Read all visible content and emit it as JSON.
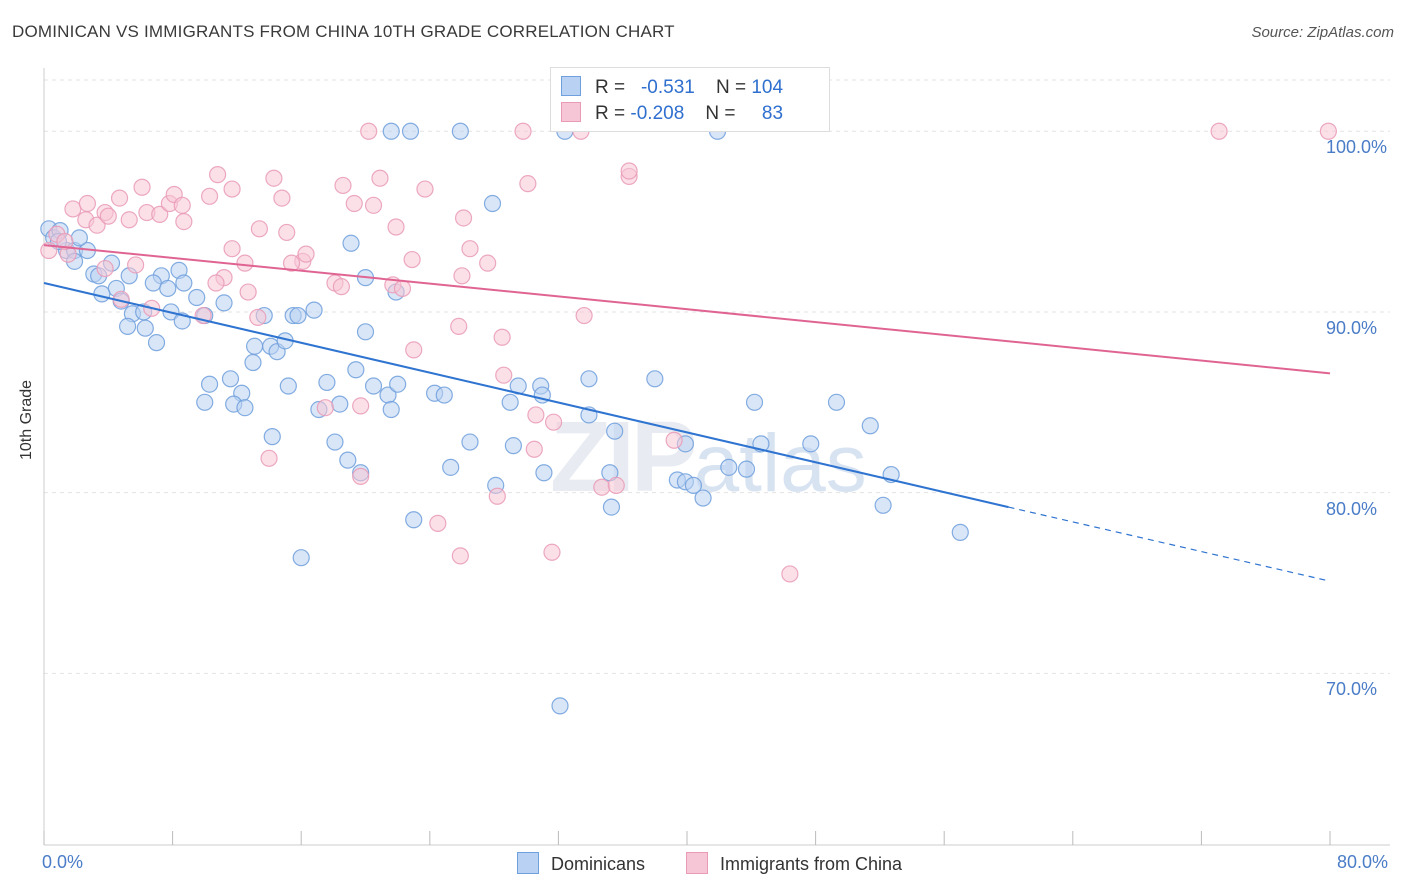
{
  "header": {
    "title": "DOMINICAN VS IMMIGRANTS FROM CHINA 10TH GRADE CORRELATION CHART",
    "source": "Source: ZipAtlas.com"
  },
  "watermark": {
    "zip": "ZIP",
    "atlas": "atlas"
  },
  "colors": {
    "blue": "#6f9fdc",
    "blue_fill": "#b9d1f2",
    "blue_line": "#2f74d0",
    "pink": "#e99ab6",
    "pink_fill": "#f7c6d6",
    "pink_line": "#e06492",
    "tick": "#4a7cc7"
  },
  "legend": {
    "rows": [
      {
        "r_label": "R =",
        "r_value": "-0.531",
        "n_label": "N =",
        "n_value": "104"
      },
      {
        "r_label": "R =",
        "r_value": "-0.208",
        "n_label": "N =",
        "n_value": "83"
      }
    ],
    "series": [
      "Dominicans",
      "Immigrants from China"
    ]
  },
  "chart_data": {
    "type": "scatter",
    "ylabel": "10th Grade",
    "xlim": [
      0,
      80
    ],
    "ylim": [
      60.5,
      103.5
    ],
    "x_tick_labels": [
      "0.0%",
      "80.0%"
    ],
    "y_ticks": [
      {
        "value": 100,
        "label": "100.0%"
      },
      {
        "value": 90,
        "label": "90.0%"
      },
      {
        "value": 80,
        "label": "80.0%"
      },
      {
        "value": 70,
        "label": "70.0%"
      }
    ],
    "grid": true,
    "series": [
      {
        "name": "Dominicans",
        "trend": {
          "x0": 0,
          "y0": 91.6,
          "x1": 60,
          "y1": 79.2,
          "dashed_to_x": 80,
          "dashed_to_y": 75.1
        },
        "points": [
          [
            0.3,
            94.6
          ],
          [
            0.6,
            94.1
          ],
          [
            1.0,
            94.5
          ],
          [
            1.4,
            93.4
          ],
          [
            1.9,
            93.4
          ],
          [
            2.7,
            93.4
          ],
          [
            1.9,
            92.8
          ],
          [
            4.2,
            92.7
          ],
          [
            3.1,
            92.1
          ],
          [
            3.4,
            92.0
          ],
          [
            5.3,
            92.0
          ],
          [
            7.3,
            92.0
          ],
          [
            8.4,
            92.3
          ],
          [
            4.5,
            91.3
          ],
          [
            6.8,
            91.6
          ],
          [
            7.7,
            91.3
          ],
          [
            8.7,
            91.6
          ],
          [
            3.6,
            91.0
          ],
          [
            4.8,
            90.6
          ],
          [
            5.5,
            89.9
          ],
          [
            6.2,
            90.0
          ],
          [
            7.9,
            90.0
          ],
          [
            9.5,
            90.8
          ],
          [
            10.0,
            89.8
          ],
          [
            11.2,
            90.5
          ],
          [
            13.7,
            89.8
          ],
          [
            15.5,
            89.8
          ],
          [
            15.8,
            89.8
          ],
          [
            16.8,
            90.1
          ],
          [
            5.2,
            89.2
          ],
          [
            6.3,
            89.1
          ],
          [
            8.6,
            89.5
          ],
          [
            7.0,
            88.3
          ],
          [
            13.1,
            88.1
          ],
          [
            14.1,
            88.1
          ],
          [
            14.5,
            87.8
          ],
          [
            15.0,
            88.4
          ],
          [
            13.0,
            87.2
          ],
          [
            11.6,
            86.3
          ],
          [
            10.3,
            86.0
          ],
          [
            17.6,
            86.1
          ],
          [
            15.2,
            85.9
          ],
          [
            19.4,
            86.8
          ],
          [
            20.5,
            85.9
          ],
          [
            21.4,
            85.4
          ],
          [
            22.0,
            86.0
          ],
          [
            24.3,
            85.5
          ],
          [
            24.9,
            85.4
          ],
          [
            29.5,
            85.9
          ],
          [
            30.9,
            85.9
          ],
          [
            31.0,
            85.4
          ],
          [
            33.9,
            86.3
          ],
          [
            38.0,
            86.3
          ],
          [
            29.0,
            85.0
          ],
          [
            10.0,
            85.0
          ],
          [
            12.3,
            85.5
          ],
          [
            11.8,
            84.9
          ],
          [
            12.5,
            84.7
          ],
          [
            17.1,
            84.6
          ],
          [
            18.4,
            84.9
          ],
          [
            21.6,
            84.6
          ],
          [
            33.9,
            84.3
          ],
          [
            44.2,
            85.0
          ],
          [
            49.3,
            85.0
          ],
          [
            51.4,
            83.7
          ],
          [
            35.5,
            83.4
          ],
          [
            14.2,
            83.1
          ],
          [
            18.1,
            82.8
          ],
          [
            26.5,
            82.8
          ],
          [
            29.2,
            82.6
          ],
          [
            39.9,
            82.7
          ],
          [
            44.6,
            82.7
          ],
          [
            47.7,
            82.7
          ],
          [
            18.9,
            81.8
          ],
          [
            19.7,
            81.1
          ],
          [
            25.3,
            81.4
          ],
          [
            31.1,
            81.1
          ],
          [
            35.2,
            81.1
          ],
          [
            39.4,
            80.7
          ],
          [
            42.6,
            81.4
          ],
          [
            43.7,
            81.3
          ],
          [
            52.7,
            81.0
          ],
          [
            28.1,
            80.4
          ],
          [
            39.9,
            80.6
          ],
          [
            40.4,
            80.4
          ],
          [
            41.0,
            79.7
          ],
          [
            35.3,
            79.2
          ],
          [
            52.2,
            79.3
          ],
          [
            57.0,
            77.8
          ],
          [
            23.0,
            78.5
          ],
          [
            16.0,
            76.4
          ],
          [
            21.9,
            91.1
          ],
          [
            20.0,
            88.9
          ],
          [
            19.1,
            93.8
          ],
          [
            20.0,
            91.9
          ],
          [
            27.9,
            96.0
          ],
          [
            21.6,
            100.0
          ],
          [
            22.8,
            100.0
          ],
          [
            25.9,
            100.0
          ],
          [
            32.4,
            100.0
          ],
          [
            41.9,
            100.0
          ],
          [
            32.1,
            68.2
          ],
          [
            0.9,
            93.9
          ],
          [
            2.2,
            94.1
          ]
        ]
      },
      {
        "name": "Immigrants from China",
        "trend": {
          "x0": 0,
          "y0": 93.7,
          "x1": 80,
          "y1": 86.6
        },
        "points": [
          [
            0.3,
            93.4
          ],
          [
            0.8,
            94.3
          ],
          [
            1.5,
            93.2
          ],
          [
            1.8,
            95.7
          ],
          [
            2.6,
            95.1
          ],
          [
            3.3,
            94.8
          ],
          [
            2.7,
            96.0
          ],
          [
            3.8,
            95.5
          ],
          [
            4.0,
            95.3
          ],
          [
            4.7,
            96.3
          ],
          [
            5.3,
            95.1
          ],
          [
            6.1,
            96.9
          ],
          [
            6.4,
            95.5
          ],
          [
            7.2,
            95.4
          ],
          [
            7.8,
            96.0
          ],
          [
            8.1,
            96.5
          ],
          [
            8.6,
            95.9
          ],
          [
            8.7,
            95.0
          ],
          [
            10.3,
            96.4
          ],
          [
            10.8,
            97.6
          ],
          [
            11.7,
            96.8
          ],
          [
            14.3,
            97.4
          ],
          [
            14.8,
            96.3
          ],
          [
            18.6,
            97.0
          ],
          [
            19.3,
            96.0
          ],
          [
            20.9,
            97.4
          ],
          [
            23.7,
            96.8
          ],
          [
            26.1,
            95.2
          ],
          [
            30.1,
            97.1
          ],
          [
            36.4,
            97.5
          ],
          [
            13.4,
            94.6
          ],
          [
            15.1,
            94.4
          ],
          [
            11.7,
            93.5
          ],
          [
            16.1,
            92.8
          ],
          [
            15.4,
            92.7
          ],
          [
            16.3,
            93.2
          ],
          [
            12.5,
            92.7
          ],
          [
            11.2,
            91.9
          ],
          [
            10.7,
            91.6
          ],
          [
            12.7,
            91.1
          ],
          [
            18.1,
            91.6
          ],
          [
            18.5,
            91.4
          ],
          [
            21.7,
            91.5
          ],
          [
            22.3,
            91.3
          ],
          [
            22.9,
            92.9
          ],
          [
            26.5,
            93.5
          ],
          [
            27.6,
            92.7
          ],
          [
            20.5,
            95.9
          ],
          [
            21.9,
            94.7
          ],
          [
            26.0,
            92.0
          ],
          [
            5.7,
            92.6
          ],
          [
            4.8,
            90.7
          ],
          [
            6.7,
            90.2
          ],
          [
            9.9,
            89.8
          ],
          [
            13.3,
            89.7
          ],
          [
            23.0,
            87.9
          ],
          [
            25.8,
            89.2
          ],
          [
            28.5,
            88.6
          ],
          [
            28.6,
            86.5
          ],
          [
            33.6,
            89.8
          ],
          [
            19.7,
            84.8
          ],
          [
            17.5,
            84.7
          ],
          [
            30.6,
            84.3
          ],
          [
            31.7,
            83.9
          ],
          [
            30.5,
            82.4
          ],
          [
            39.2,
            82.9
          ],
          [
            14.0,
            81.9
          ],
          [
            19.7,
            80.9
          ],
          [
            34.7,
            80.3
          ],
          [
            35.6,
            80.4
          ],
          [
            28.2,
            79.8
          ],
          [
            24.5,
            78.3
          ],
          [
            25.9,
            76.5
          ],
          [
            31.6,
            76.7
          ],
          [
            46.4,
            75.5
          ],
          [
            20.2,
            100.0
          ],
          [
            29.8,
            100.0
          ],
          [
            33.4,
            100.0
          ],
          [
            73.1,
            100.0
          ],
          [
            79.9,
            100.0
          ],
          [
            36.4,
            97.8
          ],
          [
            1.3,
            93.9
          ],
          [
            3.8,
            92.4
          ]
        ]
      }
    ]
  }
}
